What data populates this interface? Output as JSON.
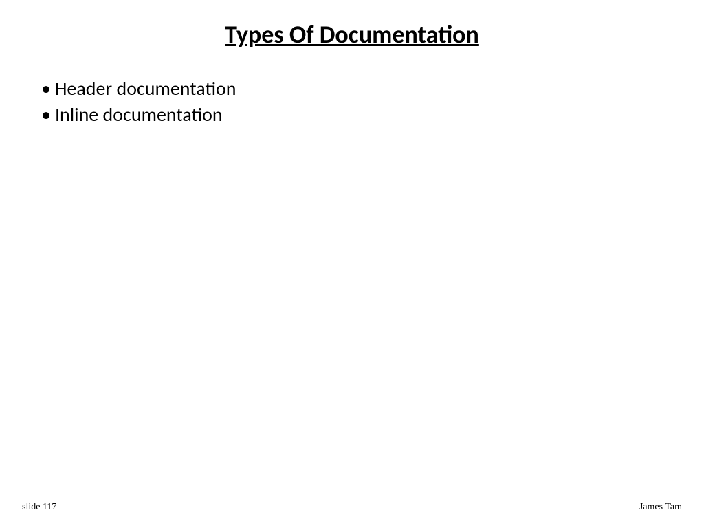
{
  "slide": {
    "title": "Types Of Documentation",
    "title_fontsize": 36,
    "title_fontweight": "bold",
    "title_underline": true,
    "title_color": "#000000",
    "bullets": [
      {
        "marker": "•",
        "text": "Header documentation"
      },
      {
        "marker": "•",
        "text": "Inline documentation"
      }
    ],
    "bullet_fontsize": 28,
    "bullet_color": "#000000",
    "background_color": "#ffffff"
  },
  "footer": {
    "left": "slide 117",
    "right": "James Tam",
    "fontsize": 14,
    "font_family": "Times New Roman",
    "color": "#000000"
  }
}
